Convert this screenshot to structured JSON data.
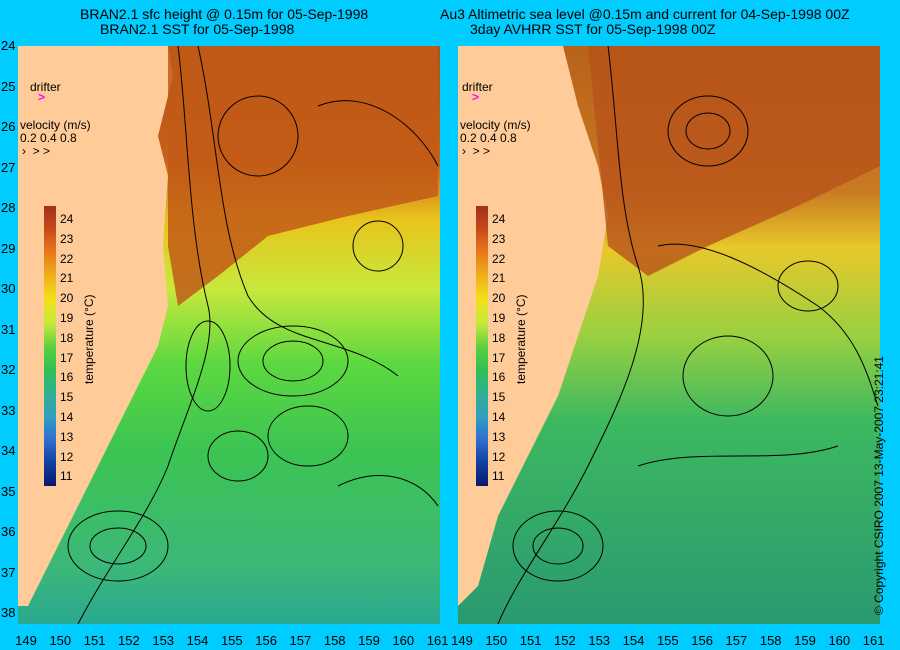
{
  "left_panel": {
    "title_line1": "BRAN2.1 sfc height @ 0.15m for 05-Sep-1998",
    "title_line2": "BRAN2.1 SST for 05-Sep-1998"
  },
  "right_panel": {
    "title_line1": "Au3 Altimetric sea level  @0.15m and current for 04-Sep-1998 00Z",
    "title_line2": "3day AVHRR SST for 05-Sep-1998 00Z"
  },
  "legend": {
    "drifter_label": "drifter",
    "velocity_label": "velocity (m/s)",
    "velocity_scale": "0.2 0.4 0.8"
  },
  "colorbar": {
    "title": "temperature (°C)",
    "ticks": [
      "24",
      "23",
      "22",
      "21",
      "20",
      "19",
      "18",
      "17",
      "16",
      "15",
      "14",
      "13",
      "12",
      "11"
    ]
  },
  "axes": {
    "latitude_ticks": [
      "24",
      "25",
      "26",
      "27",
      "28",
      "29",
      "30",
      "31",
      "32",
      "33",
      "34",
      "35",
      "36",
      "37",
      "38"
    ],
    "longitude_ticks_left": [
      "149",
      "150",
      "151",
      "152",
      "153",
      "154",
      "155",
      "156",
      "157",
      "158",
      "159",
      "160",
      "161"
    ],
    "longitude_ticks_right": [
      "149",
      "150",
      "151",
      "152",
      "153",
      "154",
      "155",
      "156",
      "157",
      "158",
      "159",
      "160",
      "161"
    ]
  },
  "copyright": "© Copyright CSIRO 2007   13-May-2007 23:21:41",
  "colors": {
    "background": "#00ccff",
    "land": "#ffcc99",
    "warm": "#b84a12",
    "mid": "#e8d419",
    "cool": "#3cc43c",
    "cold": "#1a7a5a"
  }
}
